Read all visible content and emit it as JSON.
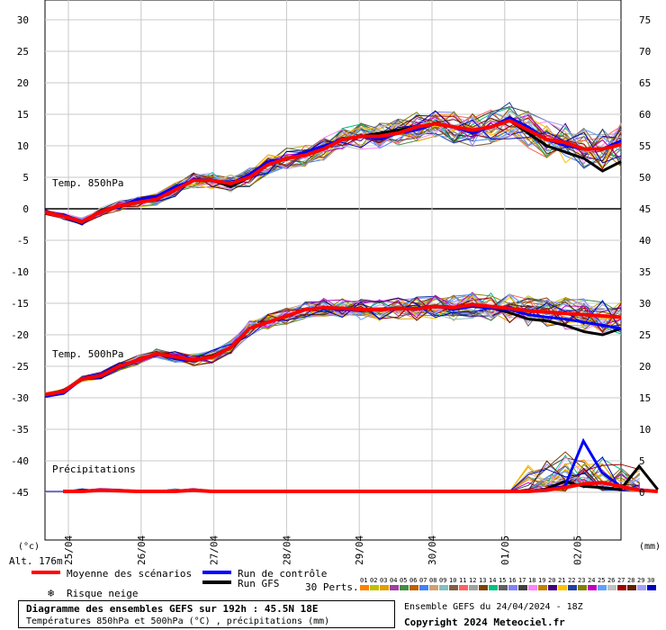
{
  "chart_data": {
    "type": "line",
    "left_unit": "(°c)",
    "right_unit": "(mm)",
    "altitude": "Alt. 176m",
    "left_ticks": [
      30,
      25,
      20,
      15,
      10,
      5,
      0,
      -5,
      -10,
      -15,
      -20,
      -25,
      -30,
      -35,
      -40,
      -45
    ],
    "right_ticks": [
      75,
      70,
      65,
      60,
      55,
      50,
      45,
      40,
      35,
      30,
      25,
      20,
      15,
      10,
      5,
      0
    ],
    "dates": [
      "25/04",
      "26/04",
      "27/04",
      "28/04",
      "29/04",
      "30/04",
      "01/05",
      "02/05"
    ],
    "panel_labels": {
      "t850": "Temp. 850hPa",
      "t500": "Temp. 500hPa",
      "precip": "Précipitations"
    },
    "x_step_hours": 6,
    "series": [
      {
        "name": "Moyenne des scénarios",
        "color": "#ff0000",
        "t850": [
          -0.5,
          -1.2,
          -2,
          -0.5,
          0.5,
          1,
          1.5,
          3,
          4.5,
          4.5,
          4,
          5,
          7,
          8,
          8.5,
          9.5,
          11,
          11.5,
          11.5,
          12,
          13,
          13.5,
          13,
          12.5,
          13,
          14,
          12.5,
          11,
          10.5,
          9.5,
          9.5,
          10.2
        ],
        "t500": [
          -29.5,
          -29,
          -27,
          -26.5,
          -25,
          -24,
          -23,
          -23.5,
          -24,
          -23.5,
          -22,
          -19,
          -18,
          -17,
          -16,
          -15.7,
          -15.8,
          -16,
          -16,
          -15.8,
          -15.9,
          -15.5,
          -15.7,
          -15.2,
          -15.5,
          -15.8,
          -16.2,
          -16.4,
          -16.6,
          -16.8,
          -17,
          -17.2
        ],
        "precip": [
          0,
          0,
          0.2,
          0.1,
          0,
          0,
          0,
          0.2,
          0,
          0,
          0,
          0,
          0,
          0,
          0,
          0,
          0,
          0,
          0,
          0,
          0,
          0,
          0,
          0,
          0,
          0,
          0.2,
          0.6,
          1.2,
          1.4,
          0.8,
          0.2,
          0
        ]
      },
      {
        "name": "Run de contrôle",
        "color": "#0000ff",
        "t850": [
          -0.5,
          -1,
          -2,
          -0.5,
          0.5,
          1.5,
          2,
          3.5,
          4.5,
          4.5,
          4,
          5.5,
          7.5,
          8,
          9,
          10,
          11,
          11.5,
          11,
          12,
          12.5,
          13.5,
          13,
          12,
          13,
          14.5,
          13,
          11,
          10,
          9.5,
          9.5,
          10.8
        ],
        "t500": [
          -29.8,
          -29.3,
          -27,
          -26.7,
          -25.2,
          -24,
          -23,
          -23.8,
          -24.2,
          -23.5,
          -22,
          -19,
          -18,
          -17,
          -16,
          -15.8,
          -16,
          -16.2,
          -16,
          -15.8,
          -16,
          -15.5,
          -16,
          -15.5,
          -15.8,
          -16,
          -16.8,
          -17.2,
          -17.5,
          -18,
          -18.5,
          -19
        ],
        "precip": [
          0,
          0,
          0.3,
          0.2,
          0,
          0,
          0,
          0.3,
          0,
          0,
          0,
          0,
          0,
          0,
          0,
          0,
          0,
          0,
          0,
          0,
          0,
          0,
          0,
          0,
          0,
          0,
          0.3,
          0.8,
          8,
          3,
          0.8,
          0.3,
          0
        ]
      },
      {
        "name": "Run GFS",
        "color": "#000000",
        "t850": [
          -0.5,
          -1.2,
          -2,
          -0.5,
          0.5,
          1,
          1.5,
          3,
          4.5,
          4.5,
          3.5,
          5,
          7,
          8,
          8.5,
          9.5,
          11,
          11.5,
          12,
          12.5,
          13,
          13.5,
          13,
          12.5,
          13,
          14,
          12,
          10,
          9,
          8,
          6,
          7.5
        ],
        "t500": [
          -29.6,
          -29,
          -27,
          -26.8,
          -25,
          -24,
          -23,
          -23.4,
          -24,
          -23.3,
          -22,
          -19,
          -18,
          -17,
          -16,
          -15.8,
          -15.9,
          -16,
          -16,
          -15.7,
          -15.8,
          -15.4,
          -15.6,
          -15.3,
          -15.7,
          -16.5,
          -17.5,
          -17.8,
          -18.5,
          -19.5,
          -20,
          -19
        ],
        "precip": [
          0,
          0,
          0.2,
          0.1,
          0,
          0,
          0,
          0.2,
          0,
          0,
          0,
          0,
          0,
          0,
          0,
          0,
          0,
          0,
          0,
          0,
          0,
          0,
          0,
          0,
          0,
          0,
          0.4,
          1.6,
          0.8,
          0.6,
          0.3,
          4,
          0.3
        ]
      }
    ],
    "legend": {
      "mean": "Moyenne des scénarios",
      "control": "Run de contrôle",
      "gfs": "Run GFS",
      "snow": "Risque neige",
      "perts_label": "30 Perts.",
      "pert_numbers": [
        "01",
        "02",
        "03",
        "04",
        "05",
        "06",
        "07",
        "08",
        "09",
        "10",
        "11",
        "12",
        "13",
        "14",
        "15",
        "16",
        "17",
        "18",
        "19",
        "20",
        "21",
        "22",
        "23",
        "24",
        "25",
        "26",
        "27",
        "28",
        "29",
        "30"
      ],
      "pert_colors": [
        "#ff7f00",
        "#c0c000",
        "#e0a000",
        "#a040a0",
        "#409040",
        "#c06000",
        "#4080ff",
        "#d0a070",
        "#80c0c0",
        "#806040",
        "#ff6060",
        "#a0a0a0",
        "#804000",
        "#00c080",
        "#606060",
        "#8080ff",
        "#404040",
        "#ff80ff",
        "#c08000",
        "#400080",
        "#ffc000",
        "#2040a0",
        "#808000",
        "#c000c0",
        "#60a0ff",
        "#c0c0c0",
        "#a00000",
        "#602000",
        "#a0a0ff",
        "#0000c0"
      ]
    },
    "footer": {
      "title": "Diagramme des ensembles GEFS sur 192h : 45.5N 18E",
      "subtitle": "Températures 850hPa et 500hPa (°C) , précipitations (mm)",
      "run": "Ensemble GEFS du 24/04/2024 - 18Z",
      "copyright": "Copyright 2024 Meteociel.fr"
    }
  }
}
